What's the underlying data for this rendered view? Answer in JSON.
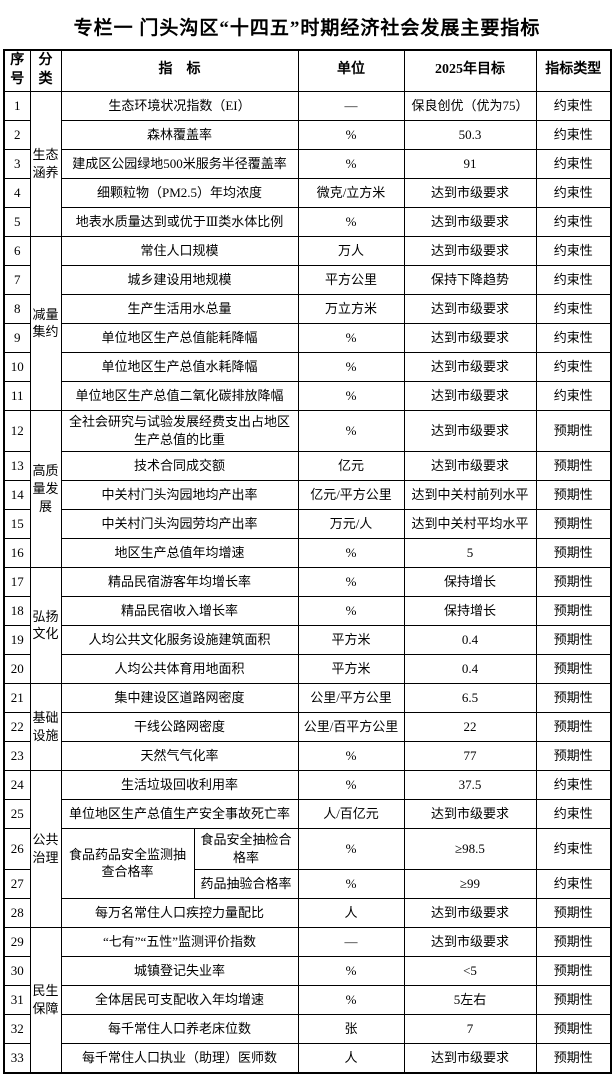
{
  "title": "专栏一 门头沟区“十四五”时期经济社会发展主要指标",
  "table": {
    "header": [
      "序号",
      "分类",
      "指　标",
      "单位",
      "2025年目标",
      "指标类型"
    ],
    "rows": [
      {
        "no": "1",
        "category": "生态涵养",
        "category_rowspan": 5,
        "indicator": "生态环境状况指数（EI）",
        "unit": "—",
        "target": "保良创优（优为75）",
        "type": "约束性"
      },
      {
        "no": "2",
        "indicator": "森林覆盖率",
        "unit": "%",
        "target": "50.3",
        "type": "约束性"
      },
      {
        "no": "3",
        "indicator": "建成区公园绿地500米服务半径覆盖率",
        "unit": "%",
        "target": "91",
        "type": "约束性"
      },
      {
        "no": "4",
        "indicator": "细颗粒物（PM2.5）年均浓度",
        "unit": "微克/立方米",
        "target": "达到市级要求",
        "type": "约束性"
      },
      {
        "no": "5",
        "indicator": "地表水质量达到或优于Ⅲ类水体比例",
        "unit": "%",
        "target": "达到市级要求",
        "type": "约束性"
      },
      {
        "no": "6",
        "category": "减量集约",
        "category_rowspan": 6,
        "indicator": "常住人口规模",
        "unit": "万人",
        "target": "达到市级要求",
        "type": "约束性"
      },
      {
        "no": "7",
        "indicator": "城乡建设用地规模",
        "unit": "平方公里",
        "target": "保持下降趋势",
        "type": "约束性"
      },
      {
        "no": "8",
        "indicator": "生产生活用水总量",
        "unit": "万立方米",
        "target": "达到市级要求",
        "type": "约束性"
      },
      {
        "no": "9",
        "indicator": "单位地区生产总值能耗降幅",
        "unit": "%",
        "target": "达到市级要求",
        "type": "约束性"
      },
      {
        "no": "10",
        "indicator": "单位地区生产总值水耗降幅",
        "unit": "%",
        "target": "达到市级要求",
        "type": "约束性"
      },
      {
        "no": "11",
        "indicator": "单位地区生产总值二氧化碳排放降幅",
        "unit": "%",
        "target": "达到市级要求",
        "type": "约束性"
      },
      {
        "no": "12",
        "category": "高质量发展",
        "category_rowspan": 5,
        "tall": true,
        "indicator": "全社会研究与试验发展经费支出占地区生产总值的比重",
        "unit": "%",
        "target": "达到市级要求",
        "type": "预期性"
      },
      {
        "no": "13",
        "indicator": "技术合同成交额",
        "unit": "亿元",
        "target": "达到市级要求",
        "type": "预期性"
      },
      {
        "no": "14",
        "indicator": "中关村门头沟园地均产出率",
        "unit": "亿元/平方公里",
        "target": "达到中关村前列水平",
        "type": "预期性"
      },
      {
        "no": "15",
        "indicator": "中关村门头沟园劳均产出率",
        "unit": "万元/人",
        "target": "达到中关村平均水平",
        "type": "预期性"
      },
      {
        "no": "16",
        "indicator": "地区生产总值年均增速",
        "unit": "%",
        "target": "5",
        "type": "预期性"
      },
      {
        "no": "17",
        "category": "弘扬文化",
        "category_rowspan": 4,
        "indicator": "精品民宿游客年均增长率",
        "unit": "%",
        "target": "保持增长",
        "type": "预期性"
      },
      {
        "no": "18",
        "indicator": "精品民宿收入增长率",
        "unit": "%",
        "target": "保持增长",
        "type": "预期性"
      },
      {
        "no": "19",
        "indicator": "人均公共文化服务设施建筑面积",
        "unit": "平方米",
        "target": "0.4",
        "type": "预期性"
      },
      {
        "no": "20",
        "indicator": "人均公共体育用地面积",
        "unit": "平方米",
        "target": "0.4",
        "type": "预期性"
      },
      {
        "no": "21",
        "category": "基础设施",
        "category_rowspan": 3,
        "indicator": "集中建设区道路网密度",
        "unit": "公里/平方公里",
        "target": "6.5",
        "type": "预期性"
      },
      {
        "no": "22",
        "indicator": "干线公路网密度",
        "unit": "公里/百平方公里",
        "target": "22",
        "type": "预期性"
      },
      {
        "no": "23",
        "indicator": "天然气气化率",
        "unit": "%",
        "target": "77",
        "type": "预期性"
      },
      {
        "no": "24",
        "category": "公共治理",
        "category_rowspan": 5,
        "indicator": "生活垃圾回收利用率",
        "unit": "%",
        "target": "37.5",
        "type": "约束性"
      },
      {
        "no": "25",
        "indicator": "单位地区生产总值生产安全事故死亡率",
        "unit": "人/百亿元",
        "target": "达到市级要求",
        "type": "约束性"
      },
      {
        "no": "26",
        "tall": true,
        "indicator_group": "食品药品安全监测抽查合格率",
        "indicator": "食品安全抽检合格率",
        "unit": "%",
        "target": "≥98.5",
        "type": "约束性"
      },
      {
        "no": "27",
        "in_group": true,
        "indicator": "药品抽验合格率",
        "unit": "%",
        "target": "≥99",
        "type": "约束性"
      },
      {
        "no": "28",
        "indicator": "每万名常住人口疾控力量配比",
        "unit": "人",
        "target": "达到市级要求",
        "type": "预期性"
      },
      {
        "no": "29",
        "category": "民生保障",
        "category_rowspan": 5,
        "indicator": "“七有”“五性”监测评价指数",
        "unit": "—",
        "target": "达到市级要求",
        "type": "预期性"
      },
      {
        "no": "30",
        "indicator": "城镇登记失业率",
        "unit": "%",
        "target": "<5",
        "type": "预期性"
      },
      {
        "no": "31",
        "indicator": "全体居民可支配收入年均增速",
        "unit": "%",
        "target": "5左右",
        "type": "预期性"
      },
      {
        "no": "32",
        "indicator": "每千常住人口养老床位数",
        "unit": "张",
        "target": "7",
        "type": "预期性"
      },
      {
        "no": "33",
        "indicator": "每千常住人口执业（助理）医师数",
        "unit": "人",
        "target": "达到市级要求",
        "type": "预期性"
      }
    ]
  }
}
